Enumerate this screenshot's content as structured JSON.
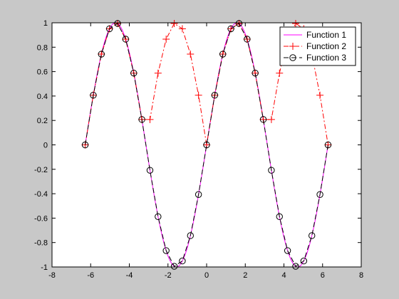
{
  "figure": {
    "background": "#c8c8c8",
    "axes_background": "#ffffff"
  },
  "chart_data": {
    "type": "line",
    "title": "",
    "xlabel": "",
    "ylabel": "",
    "xlim": [
      -8,
      8
    ],
    "ylim": [
      -1,
      1
    ],
    "xticks": [
      -8,
      -6,
      -4,
      -2,
      0,
      2,
      4,
      6,
      8
    ],
    "xtick_labels": [
      "-8",
      "-6",
      "-4",
      "-2",
      "0",
      "2",
      "4",
      "6",
      "8"
    ],
    "yticks": [
      -1,
      -0.8,
      -0.6,
      -0.4,
      -0.2,
      0,
      0.2,
      0.4,
      0.6,
      0.8,
      1
    ],
    "ytick_labels": [
      "-1",
      "-0.8",
      "-0.6",
      "-0.4",
      "-0.2",
      "0",
      "0.2",
      "0.4",
      "0.6",
      "0.8",
      "1"
    ],
    "grid": false,
    "legend_position": "top-right",
    "series": [
      {
        "name": "Function 1",
        "color": "#ff00ff",
        "line_style": "solid",
        "marker": "none",
        "function": "sin(x)",
        "x_range": [
          -6.2832,
          6.2832
        ],
        "samples": 200
      },
      {
        "name": "Function 2",
        "color": "#ff0000",
        "line_style": "dashdot",
        "marker": "plus",
        "function": "abs(sin(x))",
        "x_range": [
          -6.2832,
          6.2832
        ],
        "samples": 31
      },
      {
        "name": "Function 3",
        "color": "#000000",
        "line_style": "dashed",
        "marker": "circle",
        "function": "sin(x)",
        "x_range": [
          -6.2832,
          6.2832
        ],
        "samples": 31
      }
    ]
  }
}
